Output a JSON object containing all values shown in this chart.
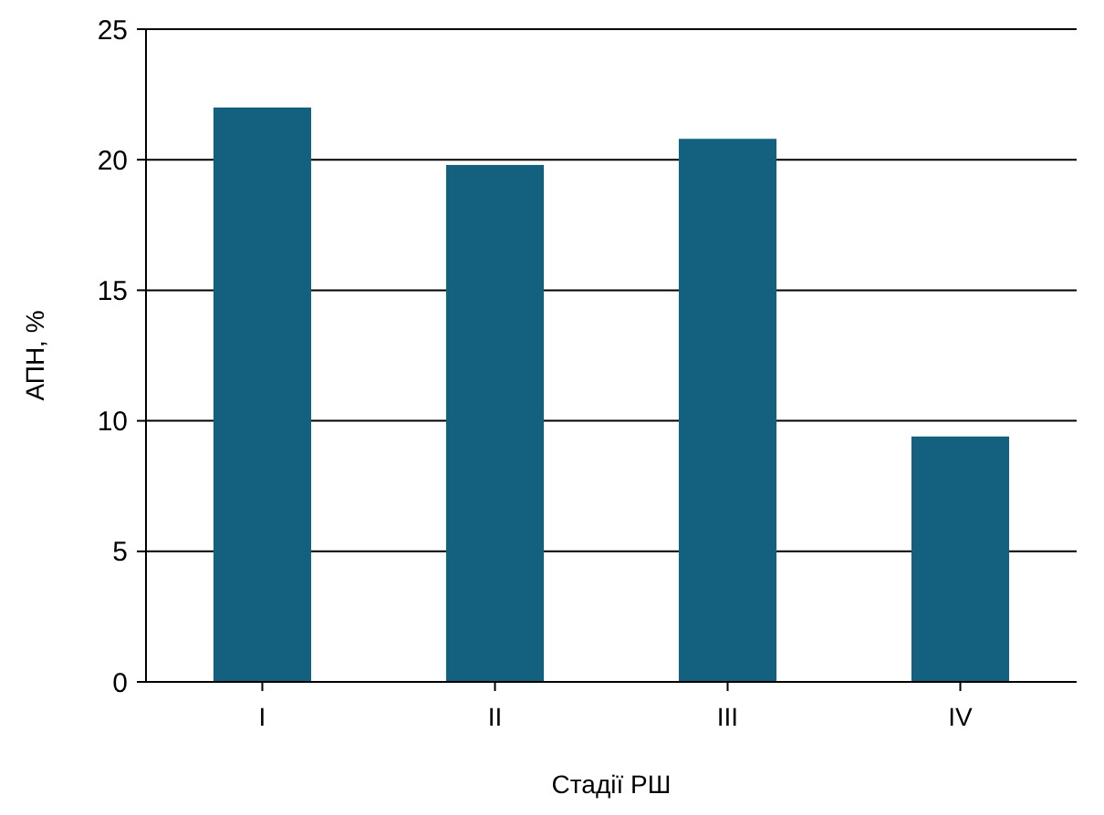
{
  "chart_data": {
    "type": "bar",
    "xlabel": "Стадії РШ",
    "ylabel": "АПН, %",
    "categories": [
      "I",
      "II",
      "III",
      "IV"
    ],
    "values": [
      22.0,
      19.8,
      20.8,
      9.4
    ],
    "color": "#13617f",
    "ylim": [
      0,
      25
    ],
    "yticks": [
      0,
      5,
      10,
      15,
      20,
      25
    ],
    "grid": "y"
  }
}
